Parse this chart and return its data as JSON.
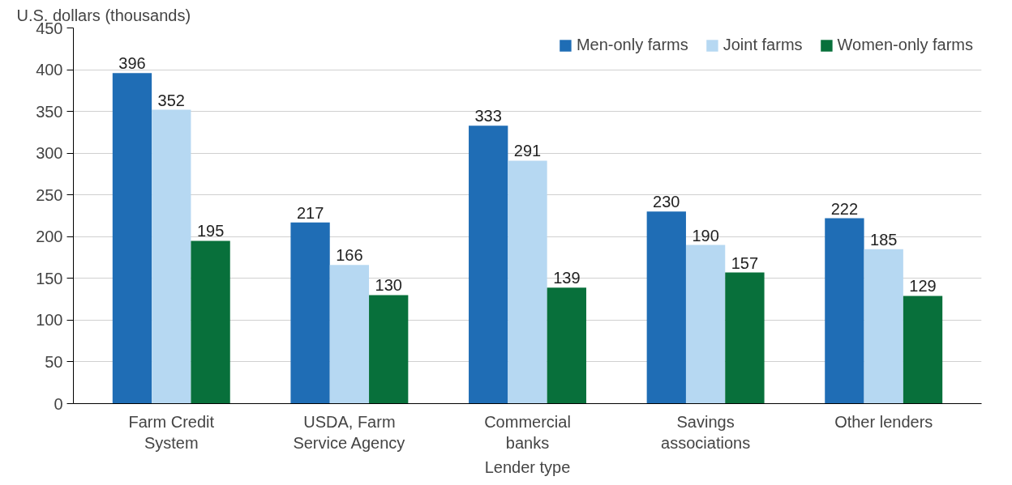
{
  "chart_data": {
    "type": "bar",
    "xlabel": "Lender type",
    "ylabel": "U.S. dollars (thousands)",
    "categories": [
      "Farm Credit System",
      "USDA, Farm Service Agency",
      "Commercial banks",
      "Savings associations",
      "Other lenders"
    ],
    "series": [
      {
        "name": "Men-only farms",
        "color": "#1f6db5",
        "values": [
          396,
          217,
          333,
          230,
          222
        ]
      },
      {
        "name": "Joint farms",
        "color": "#b6d8f2",
        "values": [
          352,
          166,
          291,
          190,
          185
        ]
      },
      {
        "name": "Women-only farms",
        "color": "#08703b",
        "values": [
          195,
          130,
          139,
          157,
          129
        ]
      }
    ],
    "ylim": [
      0,
      450
    ],
    "yticks": [
      0,
      50,
      100,
      150,
      200,
      250,
      300,
      350,
      400,
      450
    ],
    "grid": "y",
    "legend": "top right",
    "data_labels": true
  }
}
